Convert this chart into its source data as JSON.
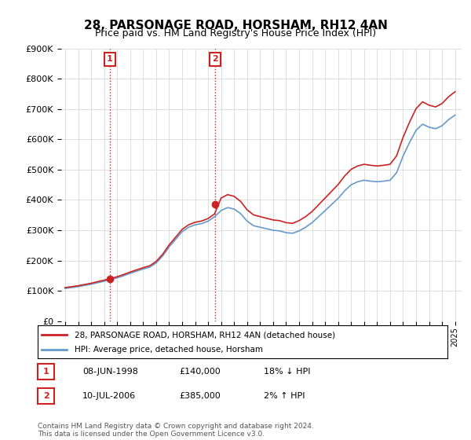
{
  "title": "28, PARSONAGE ROAD, HORSHAM, RH12 4AN",
  "subtitle": "Price paid vs. HM Land Registry's House Price Index (HPI)",
  "legend_line1": "28, PARSONAGE ROAD, HORSHAM, RH12 4AN (detached house)",
  "legend_line2": "HPI: Average price, detached house, Horsham",
  "table_row1": [
    "1",
    "08-JUN-1998",
    "£140,000",
    "18% ↓ HPI"
  ],
  "table_row2": [
    "2",
    "10-JUL-2006",
    "£385,000",
    "2% ↑ HPI"
  ],
  "footnote": "Contains HM Land Registry data © Crown copyright and database right 2024.\nThis data is licensed under the Open Government Licence v3.0.",
  "sale1_date": 1998.44,
  "sale1_price": 140000,
  "sale2_date": 2006.52,
  "sale2_price": 385000,
  "hpi_color": "#6699cc",
  "price_color": "#cc2222",
  "background_color": "#ffffff",
  "grid_color": "#dddddd",
  "ylim": [
    0,
    900000
  ],
  "xlim_start": 1995,
  "xlim_end": 2025.5
}
